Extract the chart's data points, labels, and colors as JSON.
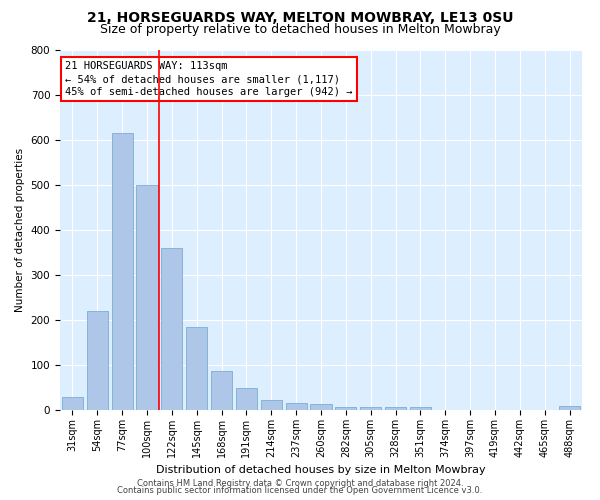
{
  "title1": "21, HORSEGUARDS WAY, MELTON MOWBRAY, LE13 0SU",
  "title2": "Size of property relative to detached houses in Melton Mowbray",
  "xlabel": "Distribution of detached houses by size in Melton Mowbray",
  "ylabel": "Number of detached properties",
  "categories": [
    "31sqm",
    "54sqm",
    "77sqm",
    "100sqm",
    "122sqm",
    "145sqm",
    "168sqm",
    "191sqm",
    "214sqm",
    "237sqm",
    "260sqm",
    "282sqm",
    "305sqm",
    "328sqm",
    "351sqm",
    "374sqm",
    "397sqm",
    "419sqm",
    "442sqm",
    "465sqm",
    "488sqm"
  ],
  "values": [
    30,
    220,
    615,
    500,
    360,
    185,
    87,
    50,
    22,
    15,
    13,
    7,
    7,
    7,
    7,
    0,
    0,
    0,
    0,
    0,
    8
  ],
  "bar_color": "#aec6e8",
  "bar_edge_color": "#7bafd4",
  "vline_x": 3.5,
  "annotation_text": "21 HORSEGUARDS WAY: 113sqm\n← 54% of detached houses are smaller (1,117)\n45% of semi-detached houses are larger (942) →",
  "annotation_box_color": "white",
  "annotation_box_edge_color": "red",
  "ylim": [
    0,
    800
  ],
  "yticks": [
    0,
    100,
    200,
    300,
    400,
    500,
    600,
    700,
    800
  ],
  "background_color": "#ddeeff",
  "grid_color": "white",
  "footer1": "Contains HM Land Registry data © Crown copyright and database right 2024.",
  "footer2": "Contains public sector information licensed under the Open Government Licence v3.0.",
  "vline_color": "red",
  "title_fontsize": 10,
  "subtitle_fontsize": 9
}
